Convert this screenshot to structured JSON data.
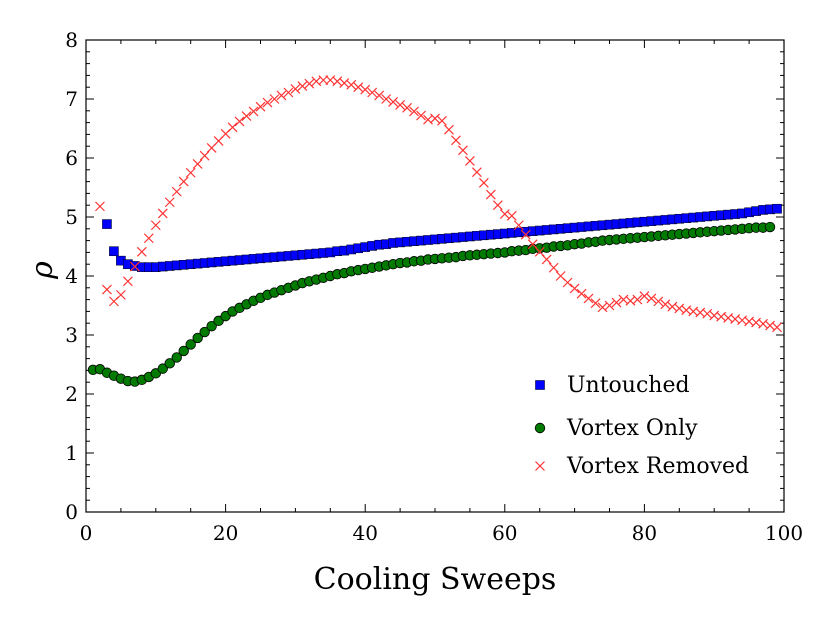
{
  "chart_data": {
    "type": "scatter",
    "title": "",
    "xlabel": "Cooling Sweeps",
    "ylabel": "ρ",
    "xlim": [
      0,
      100
    ],
    "ylim": [
      0,
      8
    ],
    "xticks": [
      0,
      20,
      40,
      60,
      80,
      100
    ],
    "yticks": [
      0,
      1,
      2,
      3,
      4,
      5,
      6,
      7,
      8
    ],
    "grid": false,
    "legend_position": "bottom-right",
    "series": [
      {
        "name": "Untouched",
        "marker": "square",
        "color": "#0000ff",
        "x": [
          3,
          4,
          5,
          6,
          7,
          8,
          9,
          10,
          11,
          12,
          13,
          14,
          15,
          16,
          17,
          18,
          19,
          20,
          21,
          22,
          23,
          24,
          25,
          26,
          27,
          28,
          29,
          30,
          31,
          32,
          33,
          34,
          35,
          36,
          37,
          38,
          39,
          40,
          41,
          42,
          43,
          44,
          45,
          46,
          47,
          48,
          49,
          50,
          51,
          52,
          53,
          54,
          55,
          56,
          57,
          58,
          59,
          60,
          61,
          62,
          63,
          64,
          65,
          66,
          67,
          68,
          69,
          70,
          71,
          72,
          73,
          74,
          75,
          76,
          77,
          78,
          79,
          80,
          81,
          82,
          83,
          84,
          85,
          86,
          87,
          88,
          89,
          90,
          91,
          92,
          93,
          94,
          95,
          96,
          97,
          98,
          99
        ],
        "y": [
          4.88,
          4.42,
          4.26,
          4.2,
          4.17,
          4.15,
          4.15,
          4.15,
          4.16,
          4.17,
          4.18,
          4.19,
          4.2,
          4.21,
          4.22,
          4.23,
          4.24,
          4.25,
          4.26,
          4.27,
          4.28,
          4.29,
          4.3,
          4.31,
          4.32,
          4.33,
          4.34,
          4.35,
          4.36,
          4.37,
          4.38,
          4.39,
          4.4,
          4.42,
          4.43,
          4.45,
          4.47,
          4.49,
          4.51,
          4.53,
          4.54,
          4.56,
          4.57,
          4.58,
          4.59,
          4.6,
          4.61,
          4.62,
          4.63,
          4.64,
          4.65,
          4.66,
          4.67,
          4.68,
          4.69,
          4.7,
          4.71,
          4.72,
          4.73,
          4.74,
          4.75,
          4.76,
          4.77,
          4.78,
          4.79,
          4.8,
          4.81,
          4.82,
          4.83,
          4.84,
          4.85,
          4.86,
          4.87,
          4.88,
          4.89,
          4.9,
          4.91,
          4.92,
          4.93,
          4.94,
          4.95,
          4.96,
          4.97,
          4.98,
          4.99,
          5.0,
          5.01,
          5.02,
          5.03,
          5.04,
          5.05,
          5.06,
          5.08,
          5.1,
          5.12,
          5.13,
          5.14
        ]
      },
      {
        "name": "Vortex Only",
        "marker": "circle",
        "color": "#007a00",
        "x": [
          1,
          2,
          3,
          4,
          5,
          6,
          7,
          8,
          9,
          10,
          11,
          12,
          13,
          14,
          15,
          16,
          17,
          18,
          19,
          20,
          21,
          22,
          23,
          24,
          25,
          26,
          27,
          28,
          29,
          30,
          31,
          32,
          33,
          34,
          35,
          36,
          37,
          38,
          39,
          40,
          41,
          42,
          43,
          44,
          45,
          46,
          47,
          48,
          49,
          50,
          51,
          52,
          53,
          54,
          55,
          56,
          57,
          58,
          59,
          60,
          61,
          62,
          63,
          64,
          65,
          66,
          67,
          68,
          69,
          70,
          71,
          72,
          73,
          74,
          75,
          76,
          77,
          78,
          79,
          80,
          81,
          82,
          83,
          84,
          85,
          86,
          87,
          88,
          89,
          90,
          91,
          92,
          93,
          94,
          95,
          96,
          97,
          98
        ],
        "y": [
          2.41,
          2.42,
          2.36,
          2.31,
          2.26,
          2.22,
          2.21,
          2.24,
          2.29,
          2.35,
          2.43,
          2.52,
          2.62,
          2.73,
          2.84,
          2.95,
          3.05,
          3.15,
          3.24,
          3.32,
          3.4,
          3.46,
          3.52,
          3.58,
          3.63,
          3.68,
          3.72,
          3.76,
          3.8,
          3.84,
          3.88,
          3.91,
          3.94,
          3.97,
          4.0,
          4.03,
          4.05,
          4.08,
          4.1,
          4.12,
          4.14,
          4.16,
          4.18,
          4.2,
          4.22,
          4.23,
          4.25,
          4.26,
          4.28,
          4.29,
          4.3,
          4.31,
          4.32,
          4.34,
          4.35,
          4.36,
          4.37,
          4.38,
          4.39,
          4.4,
          4.42,
          4.43,
          4.44,
          4.46,
          4.47,
          4.48,
          4.5,
          4.51,
          4.52,
          4.54,
          4.55,
          4.57,
          4.58,
          4.6,
          4.61,
          4.62,
          4.63,
          4.64,
          4.65,
          4.66,
          4.67,
          4.68,
          4.69,
          4.7,
          4.71,
          4.72,
          4.73,
          4.74,
          4.75,
          4.76,
          4.77,
          4.78,
          4.79,
          4.8,
          4.81,
          4.82,
          4.82,
          4.83
        ]
      },
      {
        "name": "Vortex Removed",
        "marker": "x",
        "color": "#ff3333",
        "x": [
          2,
          3,
          4,
          5,
          6,
          7,
          8,
          9,
          10,
          11,
          12,
          13,
          14,
          15,
          16,
          17,
          18,
          19,
          20,
          21,
          22,
          23,
          24,
          25,
          26,
          27,
          28,
          29,
          30,
          31,
          32,
          33,
          34,
          35,
          36,
          37,
          38,
          39,
          40,
          41,
          42,
          43,
          44,
          45,
          46,
          47,
          48,
          49,
          50,
          51,
          52,
          53,
          54,
          55,
          56,
          57,
          58,
          59,
          60,
          61,
          62,
          63,
          64,
          65,
          66,
          67,
          68,
          69,
          70,
          71,
          72,
          73,
          74,
          75,
          76,
          77,
          78,
          79,
          80,
          81,
          82,
          83,
          84,
          85,
          86,
          87,
          88,
          89,
          90,
          91,
          92,
          93,
          94,
          95,
          96,
          97,
          98,
          99
        ],
        "y": [
          5.18,
          3.77,
          3.57,
          3.68,
          3.91,
          4.16,
          4.41,
          4.64,
          4.86,
          5.06,
          5.25,
          5.43,
          5.6,
          5.75,
          5.9,
          6.04,
          6.17,
          6.29,
          6.41,
          6.52,
          6.62,
          6.71,
          6.79,
          6.87,
          6.94,
          7.0,
          7.06,
          7.11,
          7.17,
          7.22,
          7.26,
          7.3,
          7.32,
          7.32,
          7.3,
          7.27,
          7.24,
          7.2,
          7.16,
          7.11,
          7.06,
          7.0,
          6.95,
          6.9,
          6.85,
          6.79,
          6.72,
          6.65,
          6.67,
          6.63,
          6.48,
          6.3,
          6.13,
          5.95,
          5.76,
          5.58,
          5.38,
          5.2,
          5.05,
          5.02,
          4.86,
          4.7,
          4.54,
          4.41,
          4.28,
          4.14,
          4.0,
          3.89,
          3.79,
          3.7,
          3.62,
          3.54,
          3.47,
          3.5,
          3.55,
          3.6,
          3.58,
          3.6,
          3.66,
          3.62,
          3.57,
          3.52,
          3.48,
          3.45,
          3.42,
          3.4,
          3.38,
          3.36,
          3.33,
          3.31,
          3.29,
          3.27,
          3.25,
          3.23,
          3.21,
          3.19,
          3.16,
          3.13
        ]
      }
    ]
  }
}
